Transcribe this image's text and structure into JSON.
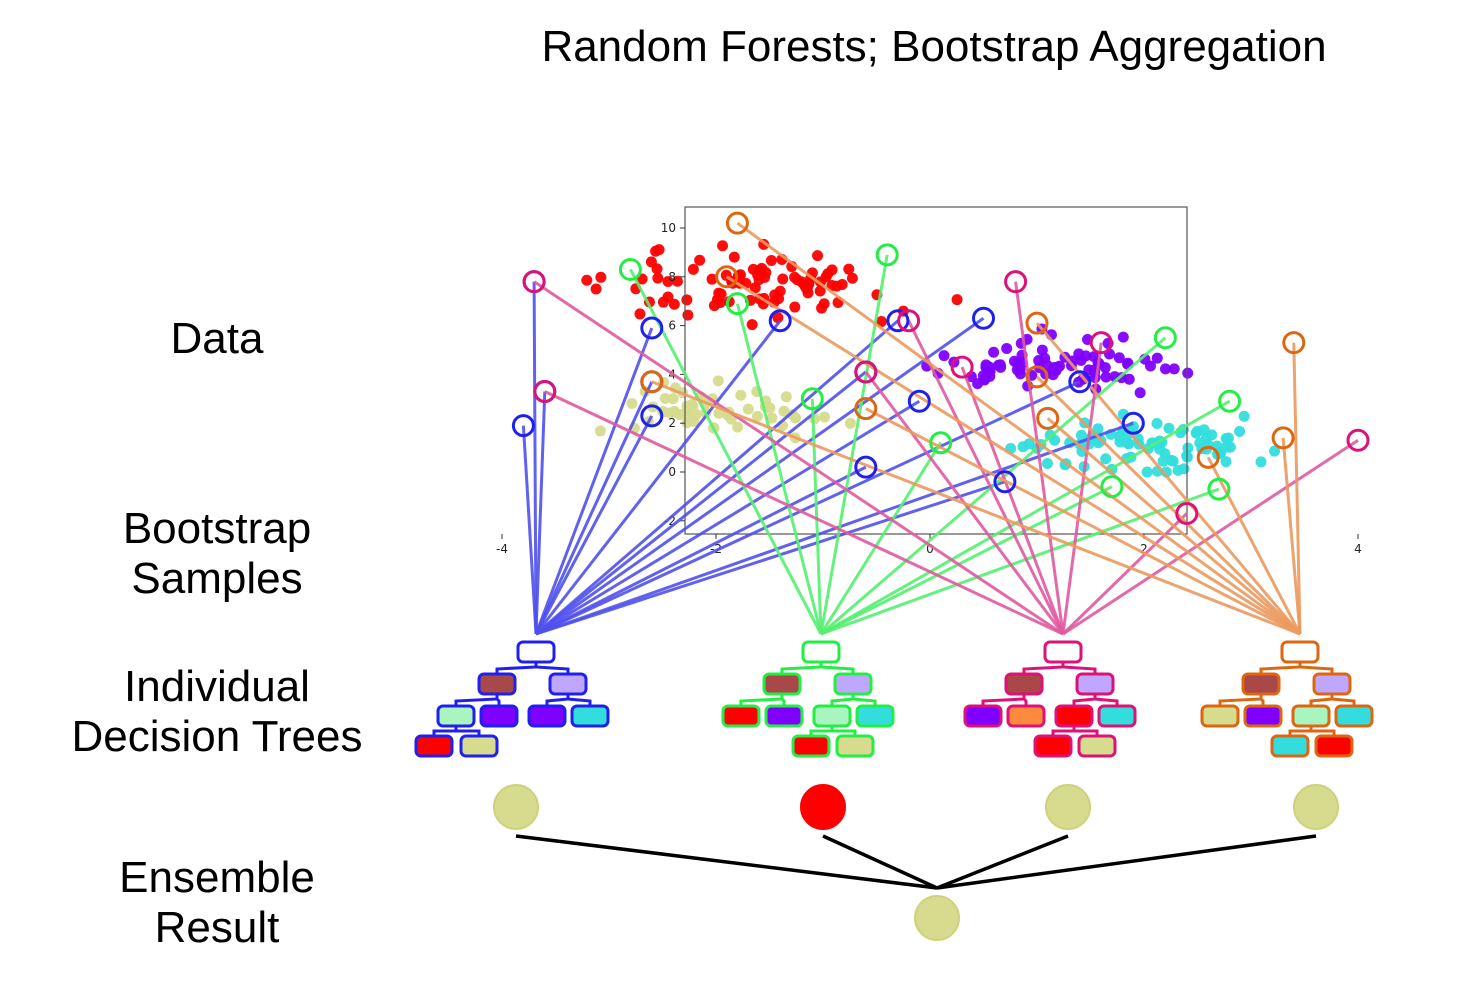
{
  "title": "Random Forests; Bootstrap Aggregation",
  "row_labels": {
    "data": "Data",
    "bootstrap": [
      "Bootstrap",
      "Samples"
    ],
    "trees": [
      "Individual",
      "Decision Trees"
    ],
    "ensemble": [
      "Ensemble",
      "Result"
    ]
  },
  "class_colors": {
    "red": "#ff0000",
    "purple": "#8000ff",
    "cyan": "#33dddd",
    "olive": "#d6db8e",
    "mint": "#a8f5c0",
    "lavender": "#bfa6ff",
    "brown": "#a84848",
    "orange": "#ff8a3d"
  },
  "scatter": {
    "xticks": [
      -4,
      -2,
      0,
      2,
      4
    ],
    "yticks": [
      -2,
      0,
      2,
      4,
      6,
      8,
      10
    ],
    "xlim": [
      -4.5,
      4.8
    ],
    "ylim": [
      -2.5,
      10.8
    ]
  },
  "trees": [
    {
      "name": "tree-1",
      "color": "#2020ee",
      "line": "#5050ee",
      "leaves": [
        "mint",
        "purple",
        "purple",
        "cyan",
        "red",
        "olive"
      ],
      "inner": [
        "brown",
        "lavender"
      ],
      "samples": [
        [
          -3.7,
          7.8
        ],
        [
          -2.6,
          5.9
        ],
        [
          -1.4,
          6.2
        ],
        [
          -0.3,
          6.2
        ],
        [
          0.5,
          6.3
        ],
        [
          -3.6,
          3.3
        ],
        [
          -2.6,
          3.7
        ],
        [
          -3.8,
          1.9
        ],
        [
          -2.6,
          2.3
        ],
        [
          -0.6,
          4.1
        ],
        [
          -0.1,
          2.9
        ],
        [
          1.4,
          3.7
        ],
        [
          1.9,
          2.0
        ],
        [
          -0.6,
          0.2
        ],
        [
          0.7,
          -0.4
        ]
      ],
      "prediction": "olive"
    },
    {
      "name": "tree-2",
      "color": "#22ee44",
      "line": "#55f070",
      "leaves": [
        "red",
        "purple",
        "mint",
        "cyan",
        "red",
        "olive"
      ],
      "inner": [
        "brown",
        "lavender"
      ],
      "samples": [
        [
          -2.8,
          8.3
        ],
        [
          -0.4,
          8.9
        ],
        [
          -1.8,
          6.9
        ],
        [
          2.2,
          5.5
        ],
        [
          -1.1,
          3.0
        ],
        [
          0.1,
          1.2
        ],
        [
          2.8,
          2.9
        ],
        [
          1.7,
          -0.6
        ],
        [
          2.7,
          -0.7
        ]
      ],
      "prediction": "red"
    },
    {
      "name": "tree-3",
      "color": "#dd1177",
      "line": "#e05aa0",
      "leaves": [
        "purple",
        "orange",
        "red",
        "cyan",
        "red",
        "olive"
      ],
      "inner": [
        "brown",
        "lavender"
      ],
      "samples": [
        [
          -3.7,
          7.8
        ],
        [
          0.8,
          7.8
        ],
        [
          -0.2,
          6.2
        ],
        [
          1.6,
          5.3
        ],
        [
          0.3,
          4.3
        ],
        [
          -0.6,
          4.1
        ],
        [
          -3.6,
          3.3
        ],
        [
          4.0,
          1.3
        ],
        [
          2.4,
          -1.7
        ]
      ],
      "prediction": "olive"
    },
    {
      "name": "tree-4",
      "color": "#dd6611",
      "line": "#ec9a5e",
      "leaves": [
        "olive",
        "purple",
        "mint",
        "cyan",
        "cyan",
        "red"
      ],
      "inner": [
        "brown",
        "lavender"
      ],
      "samples": [
        [
          -1.8,
          10.2
        ],
        [
          -1.9,
          8.0
        ],
        [
          1.0,
          6.1
        ],
        [
          3.4,
          5.3
        ],
        [
          -2.6,
          3.7
        ],
        [
          -0.6,
          2.6
        ],
        [
          1.0,
          3.9
        ],
        [
          1.1,
          2.2
        ],
        [
          3.3,
          1.4
        ],
        [
          2.6,
          0.6
        ]
      ],
      "prediction": "olive"
    }
  ],
  "ensemble_result": "olive"
}
